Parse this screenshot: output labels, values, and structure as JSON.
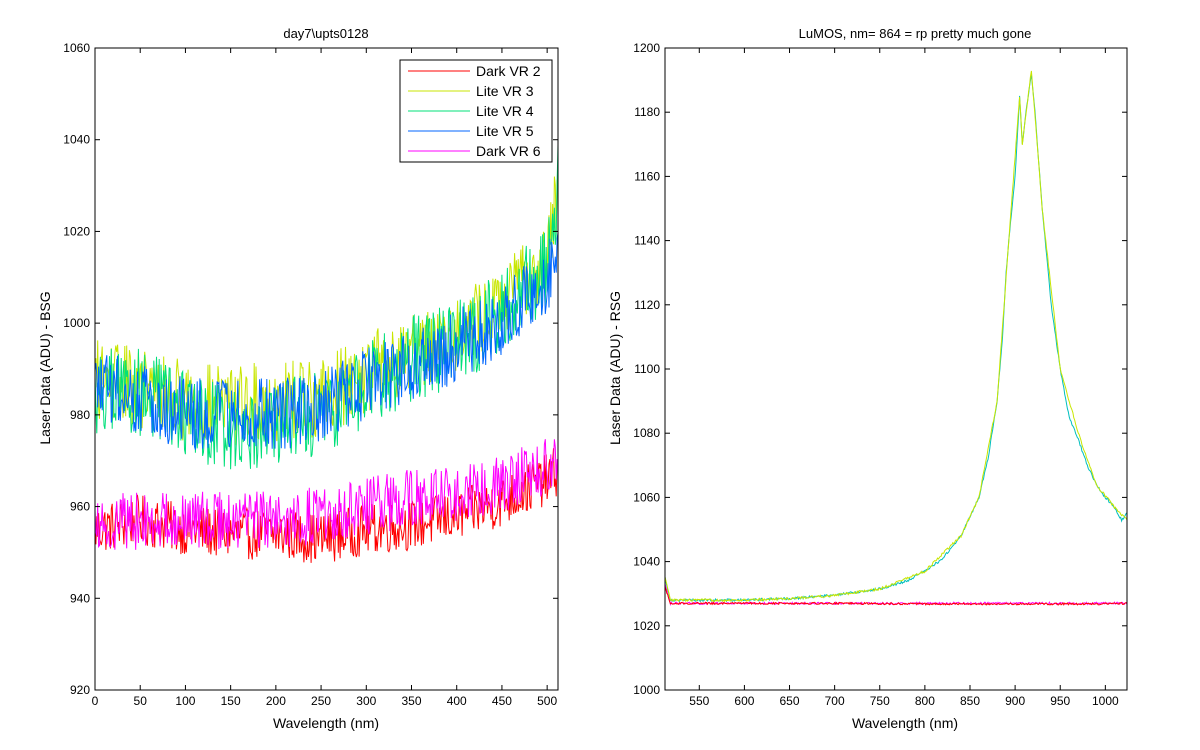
{
  "chart_data": [
    {
      "type": "line",
      "title": "day7\\upts0128",
      "xlabel": "Wavelength (nm)",
      "ylabel": "Laser Data (ADU) - BSG",
      "xlim": [
        0,
        512
      ],
      "ylim": [
        920,
        1060
      ],
      "xticks": [
        0,
        50,
        100,
        150,
        200,
        250,
        300,
        350,
        400,
        450,
        500
      ],
      "yticks": [
        920,
        940,
        960,
        980,
        1000,
        1020,
        1040,
        1060
      ],
      "legend": "top-right",
      "series": [
        {
          "name": "Dark VR 2",
          "color": "#ff0000",
          "points": [
            [
              0,
              955
            ],
            [
              50,
              957
            ],
            [
              100,
              955
            ],
            [
              150,
              954
            ],
            [
              200,
              954
            ],
            [
              250,
              953
            ],
            [
              300,
              955
            ],
            [
              350,
              956
            ],
            [
              400,
              958
            ],
            [
              450,
              961
            ],
            [
              500,
              966
            ],
            [
              512,
              968
            ]
          ]
        },
        {
          "name": "Lite VR 3",
          "color": "#c8e600",
          "points": [
            [
              0,
              988
            ],
            [
              50,
              986
            ],
            [
              100,
              983
            ],
            [
              150,
              982
            ],
            [
              200,
              983
            ],
            [
              250,
              984
            ],
            [
              300,
              989
            ],
            [
              350,
              994
            ],
            [
              400,
              998
            ],
            [
              450,
              1004
            ],
            [
              500,
              1015
            ],
            [
              512,
              1030
            ]
          ]
        },
        {
          "name": "Lite VR 4",
          "color": "#00e07a",
          "points": [
            [
              0,
              985
            ],
            [
              50,
              985
            ],
            [
              100,
              980
            ],
            [
              150,
              977
            ],
            [
              200,
              978
            ],
            [
              250,
              980
            ],
            [
              300,
              987
            ],
            [
              350,
              992
            ],
            [
              400,
              996
            ],
            [
              450,
              1002
            ],
            [
              500,
              1012
            ],
            [
              512,
              1030
            ]
          ]
        },
        {
          "name": "Lite VR 5",
          "color": "#0066ff",
          "points": [
            [
              0,
              986
            ],
            [
              50,
              984
            ],
            [
              100,
              980
            ],
            [
              150,
              980
            ],
            [
              200,
              980
            ],
            [
              250,
              982
            ],
            [
              300,
              987
            ],
            [
              350,
              991
            ],
            [
              400,
              995
            ],
            [
              450,
              1000
            ],
            [
              500,
              1010
            ],
            [
              512,
              1018
            ]
          ]
        },
        {
          "name": "Dark VR 6",
          "color": "#ff00ff",
          "points": [
            [
              0,
              956
            ],
            [
              50,
              957
            ],
            [
              100,
              957
            ],
            [
              150,
              957
            ],
            [
              200,
              957
            ],
            [
              250,
              958
            ],
            [
              300,
              960
            ],
            [
              350,
              962
            ],
            [
              400,
              963
            ],
            [
              450,
              965
            ],
            [
              500,
              969
            ],
            [
              512,
              970
            ]
          ]
        }
      ]
    },
    {
      "type": "line",
      "title": "LuMOS, nm= 864 = rp pretty much gone",
      "xlabel": "Wavelength (nm)",
      "ylabel": "Laser Data (ADU) - RSG",
      "xlim": [
        512,
        1024
      ],
      "ylim": [
        1000,
        1200
      ],
      "xticks": [
        550,
        600,
        650,
        700,
        750,
        800,
        850,
        900,
        950,
        1000
      ],
      "yticks": [
        1000,
        1020,
        1040,
        1060,
        1080,
        1100,
        1120,
        1140,
        1160,
        1180,
        1200
      ],
      "series": [
        {
          "color": "#00bfbf",
          "points": [
            [
              512,
              1035
            ],
            [
              518,
              1028
            ],
            [
              550,
              1028
            ],
            [
              600,
              1028
            ],
            [
              650,
              1028.5
            ],
            [
              700,
              1029.5
            ],
            [
              750,
              1031.5
            ],
            [
              780,
              1034
            ],
            [
              800,
              1037
            ],
            [
              820,
              1041
            ],
            [
              840,
              1048
            ],
            [
              860,
              1060
            ],
            [
              870,
              1072
            ],
            [
              880,
              1090
            ],
            [
              886,
              1110
            ],
            [
              890,
              1130
            ],
            [
              893,
              1140
            ],
            [
              900,
              1160
            ],
            [
              905,
              1185
            ],
            [
              908,
              1170
            ],
            [
              912,
              1180
            ],
            [
              918,
              1192
            ],
            [
              922,
              1180
            ],
            [
              930,
              1150
            ],
            [
              940,
              1120
            ],
            [
              950,
              1100
            ],
            [
              960,
              1085
            ],
            [
              970,
              1078
            ],
            [
              980,
              1070
            ],
            [
              990,
              1064
            ],
            [
              1000,
              1060
            ],
            [
              1010,
              1057
            ],
            [
              1018,
              1053
            ],
            [
              1024,
              1055
            ]
          ]
        },
        {
          "color": "#c8e600",
          "points": [
            [
              512,
              1035
            ],
            [
              518,
              1028
            ],
            [
              600,
              1028
            ],
            [
              650,
              1028.5
            ],
            [
              700,
              1029.5
            ],
            [
              750,
              1031.5
            ],
            [
              800,
              1037
            ],
            [
              840,
              1048
            ],
            [
              860,
              1060
            ],
            [
              880,
              1090
            ],
            [
              893,
              1140
            ],
            [
              905,
              1185
            ],
            [
              908,
              1170
            ],
            [
              918,
              1193
            ],
            [
              930,
              1150
            ],
            [
              950,
              1100
            ],
            [
              970,
              1080
            ],
            [
              990,
              1064
            ],
            [
              1010,
              1057
            ],
            [
              1024,
              1053
            ]
          ]
        },
        {
          "color": "#ff00ff",
          "points": [
            [
              512,
              1033
            ],
            [
              518,
              1027
            ],
            [
              600,
              1027
            ],
            [
              700,
              1027
            ],
            [
              800,
              1027
            ],
            [
              900,
              1027
            ],
            [
              1000,
              1027
            ],
            [
              1024,
              1027
            ]
          ]
        },
        {
          "color": "#ff0000",
          "points": [
            [
              512,
              1032
            ],
            [
              518,
              1027
            ],
            [
              600,
              1027
            ],
            [
              700,
              1027
            ],
            [
              800,
              1026.8
            ],
            [
              900,
              1026.8
            ],
            [
              1000,
              1026.8
            ],
            [
              1024,
              1027
            ]
          ]
        }
      ]
    }
  ]
}
